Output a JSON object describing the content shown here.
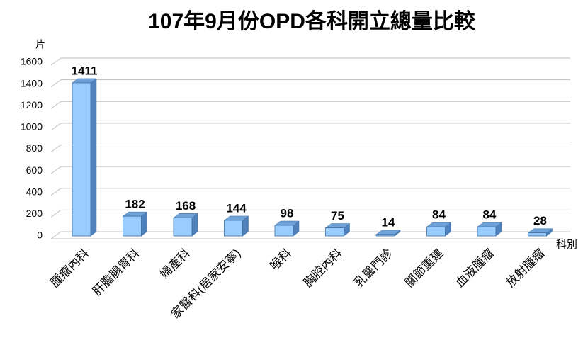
{
  "chart_data": {
    "type": "bar",
    "title": "107年9月份OPD各科開立總量比較",
    "y_label": "片",
    "x_label": "科別",
    "categories": [
      "腫瘤內科",
      "肝膽腸胃科",
      "婦產科",
      "家醫科(居家安寧)",
      "喉科",
      "胸腔內科",
      "乳醫門診",
      "關節重建",
      "血液腫瘤",
      "放射腫瘤"
    ],
    "values": [
      1411,
      182,
      168,
      144,
      98,
      75,
      14,
      84,
      84,
      28
    ],
    "color": "#99ccff",
    "ylim": [
      0,
      1600
    ],
    "yticks": [
      0,
      200,
      400,
      600,
      800,
      1000,
      1200,
      1400,
      1600
    ],
    "grid": true
  }
}
